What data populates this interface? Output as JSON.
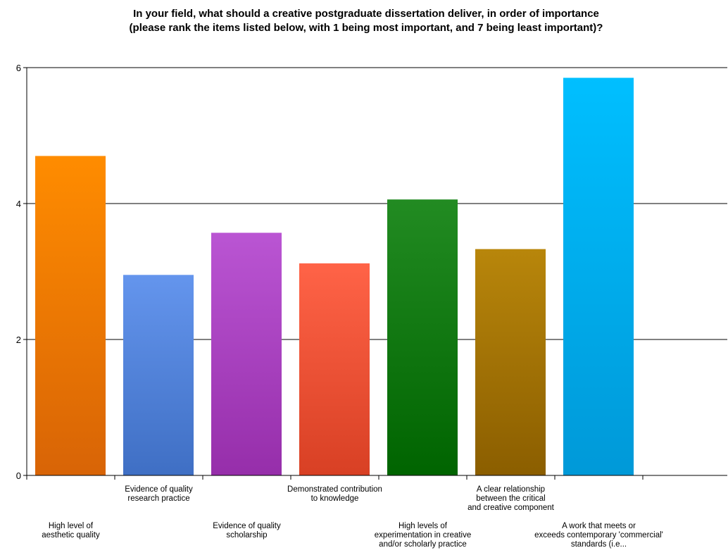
{
  "chart_data": {
    "type": "bar",
    "title": [
      "In your field, what should a creative postgraduate dissertation deliver, in order of importance",
      "(please rank the items listed below, with 1 being most important, and 7 being least important)?"
    ],
    "categories": [
      [
        "High level of",
        "aesthetic quality"
      ],
      [
        "Evidence of quality",
        "research practice"
      ],
      [
        "Evidence of quality",
        "scholarship"
      ],
      [
        "Demonstrated contribution",
        "to knowledge"
      ],
      [
        "High levels of",
        "experimentation in creative",
        "and/or scholarly practice"
      ],
      [
        "A clear relationship",
        "between the critical",
        "and creative component"
      ],
      [
        "A work that meets or",
        "exceeds contemporary 'commercial'",
        "standards (i.e..."
      ]
    ],
    "values": [
      4.7,
      2.95,
      3.57,
      3.12,
      4.06,
      3.33,
      5.85
    ],
    "colors": [
      [
        "#ff8c00",
        "#d86406"
      ],
      [
        "#6495ed",
        "#3f6fc4"
      ],
      [
        "#ba55d3",
        "#962eaa"
      ],
      [
        "#ff6347",
        "#d84024"
      ],
      [
        "#228b22",
        "#006400"
      ],
      [
        "#b8860b",
        "#8b5e00"
      ],
      [
        "#00bfff",
        "#0099d8"
      ]
    ],
    "yticks": [
      0,
      2,
      4,
      6
    ],
    "ylim": [
      0,
      6
    ],
    "grid": true,
    "legend": "none"
  }
}
